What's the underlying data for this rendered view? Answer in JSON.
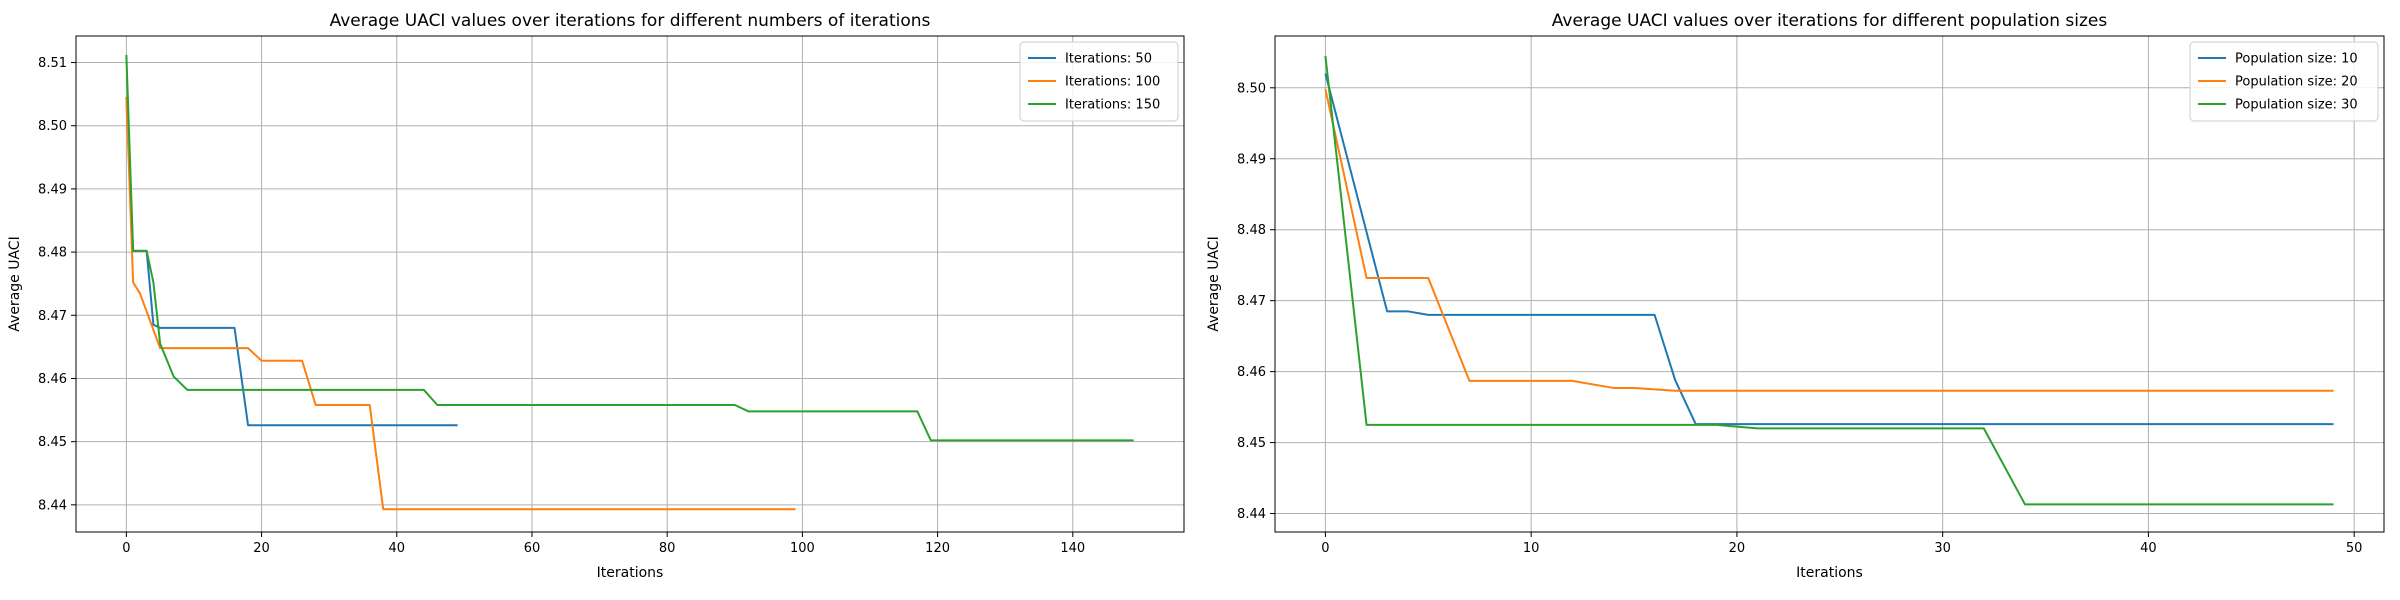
{
  "chart_data": [
    {
      "type": "line",
      "title": "Average UACI values over iterations for different numbers of iterations",
      "xlabel": "Iterations",
      "ylabel": "Average UACI",
      "xlim": [
        -7.45,
        156.45
      ],
      "ylim": [
        8.4357,
        8.5142
      ],
      "xticks": [
        0,
        20,
        40,
        60,
        80,
        100,
        120,
        140
      ],
      "yticks": [
        8.44,
        8.45,
        8.46,
        8.47,
        8.48,
        8.49,
        8.5,
        8.51
      ],
      "ytick_decimals": 2,
      "grid": true,
      "legend_position": "top-right",
      "series": [
        {
          "name": "Iterations: 50",
          "color": "#1f77b4",
          "points": [
            [
              0,
              8.5045
            ],
            [
              1,
              8.4802
            ],
            [
              3,
              8.4802
            ],
            [
              4,
              8.4685
            ],
            [
              5,
              8.468
            ],
            [
              16,
              8.468
            ],
            [
              18,
              8.4526
            ],
            [
              49,
              8.4526
            ]
          ]
        },
        {
          "name": "Iterations: 100",
          "color": "#ff7f0e",
          "points": [
            [
              0,
              8.5045
            ],
            [
              1,
              8.4752
            ],
            [
              2,
              8.4735
            ],
            [
              5,
              8.4648
            ],
            [
              18,
              8.4648
            ],
            [
              20,
              8.4628
            ],
            [
              26,
              8.4628
            ],
            [
              28,
              8.4558
            ],
            [
              36,
              8.4558
            ],
            [
              38,
              8.4393
            ],
            [
              99,
              8.4393
            ]
          ]
        },
        {
          "name": "Iterations: 150",
          "color": "#2ca02c",
          "points": [
            [
              0,
              8.5112
            ],
            [
              1,
              8.4802
            ],
            [
              3,
              8.4802
            ],
            [
              4,
              8.4752
            ],
            [
              5,
              8.4655
            ],
            [
              7,
              8.4603
            ],
            [
              9,
              8.4582
            ],
            [
              44,
              8.4582
            ],
            [
              46,
              8.4558
            ],
            [
              90,
              8.4558
            ],
            [
              92,
              8.4548
            ],
            [
              117,
              8.4548
            ],
            [
              119,
              8.4502
            ],
            [
              149,
              8.4502
            ]
          ]
        }
      ]
    },
    {
      "type": "line",
      "title": "Average UACI values over iterations for different population sizes",
      "xlabel": "Iterations",
      "ylabel": "Average UACI",
      "xlim": [
        -2.45,
        51.45
      ],
      "ylim": [
        8.4374,
        8.5073
      ],
      "xticks": [
        0,
        10,
        20,
        30,
        40,
        50
      ],
      "yticks": [
        8.44,
        8.45,
        8.46,
        8.47,
        8.48,
        8.49,
        8.5
      ],
      "ytick_decimals": 2,
      "grid": true,
      "legend_position": "top-right",
      "series": [
        {
          "name": "Population size: 10",
          "color": "#1f77b4",
          "points": [
            [
              0,
              8.502
            ],
            [
              3,
              8.4685
            ],
            [
              4,
              8.4685
            ],
            [
              5,
              8.468
            ],
            [
              16,
              8.468
            ],
            [
              17,
              8.4588
            ],
            [
              18,
              8.4526
            ],
            [
              49,
              8.4526
            ]
          ]
        },
        {
          "name": "Population size: 20",
          "color": "#ff7f0e",
          "points": [
            [
              0,
              8.4998
            ],
            [
              2,
              8.4732
            ],
            [
              5,
              8.4732
            ],
            [
              7,
              8.4587
            ],
            [
              12,
              8.4587
            ],
            [
              14,
              8.4577
            ],
            [
              15,
              8.4577
            ],
            [
              17,
              8.4573
            ],
            [
              49,
              8.4573
            ]
          ]
        },
        {
          "name": "Population size: 30",
          "color": "#2ca02c",
          "points": [
            [
              0,
              8.5045
            ],
            [
              2,
              8.4525
            ],
            [
              19,
              8.4525
            ],
            [
              21,
              8.452
            ],
            [
              32,
              8.452
            ],
            [
              34,
              8.4413
            ],
            [
              49,
              8.4413
            ]
          ]
        }
      ]
    }
  ]
}
